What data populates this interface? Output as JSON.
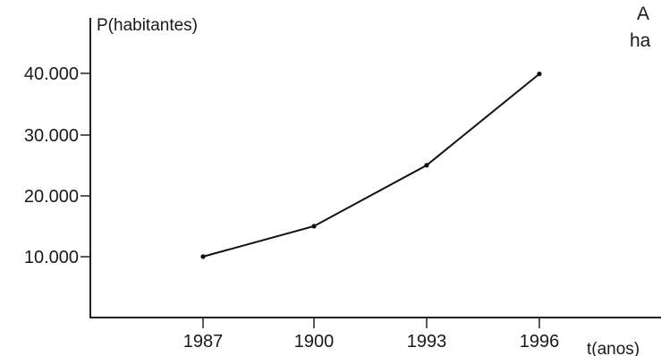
{
  "chart_data": {
    "type": "line",
    "xlabel": "t(anos)",
    "ylabel": "P(habitantes)",
    "categories": [
      "1987",
      "1900",
      "1993",
      "1996"
    ],
    "yticks": [
      "10.000",
      "20.000",
      "30.000",
      "40.000"
    ],
    "series": [
      {
        "values": [
          10000,
          15000,
          25000,
          40000
        ]
      }
    ],
    "ylim": [
      0,
      45000
    ],
    "grid": false,
    "legend": "none",
    "line_color": "#111111"
  },
  "edge_text": {
    "line1": "A",
    "line2": "ha"
  }
}
